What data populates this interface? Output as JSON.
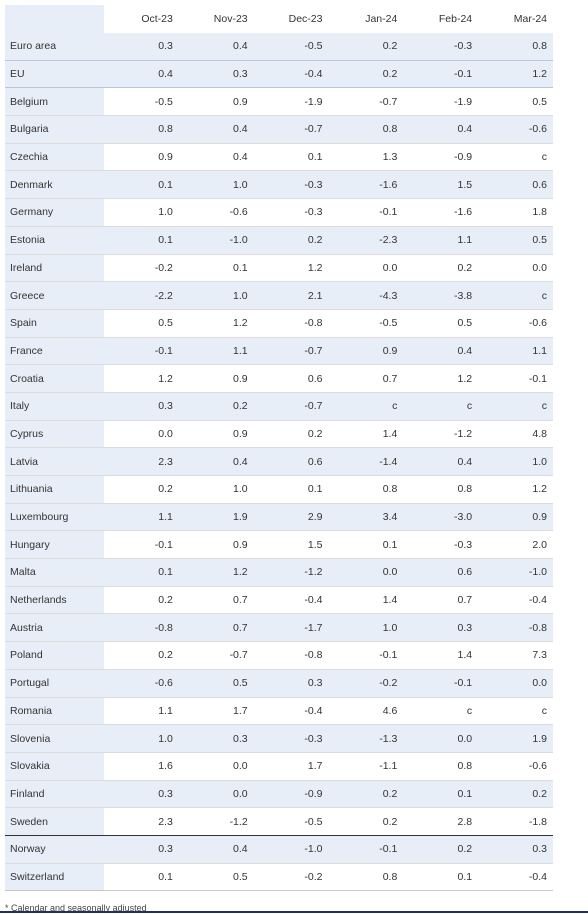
{
  "table": {
    "columns": [
      "Oct-23",
      "Nov-23",
      "Dec-23",
      "Jan-24",
      "Feb-24",
      "Mar-24"
    ],
    "aggregates": [
      {
        "name": "Euro area",
        "values": [
          "0.3",
          "0.4",
          "-0.5",
          "0.2",
          "-0.3",
          "0.8"
        ]
      },
      {
        "name": "EU",
        "values": [
          "0.4",
          "0.3",
          "-0.4",
          "0.2",
          "-0.1",
          "1.2"
        ]
      }
    ],
    "countries": [
      {
        "name": "Belgium",
        "values": [
          "-0.5",
          "0.9",
          "-1.9",
          "-0.7",
          "-1.9",
          "0.5"
        ]
      },
      {
        "name": "Bulgaria",
        "values": [
          "0.8",
          "0.4",
          "-0.7",
          "0.8",
          "0.4",
          "-0.6"
        ]
      },
      {
        "name": "Czechia",
        "values": [
          "0.9",
          "0.4",
          "0.1",
          "1.3",
          "-0.9",
          "c"
        ]
      },
      {
        "name": "Denmark",
        "values": [
          "0.1",
          "1.0",
          "-0.3",
          "-1.6",
          "1.5",
          "0.6"
        ]
      },
      {
        "name": "Germany",
        "values": [
          "1.0",
          "-0.6",
          "-0.3",
          "-0.1",
          "-1.6",
          "1.8"
        ]
      },
      {
        "name": "Estonia",
        "values": [
          "0.1",
          "-1.0",
          "0.2",
          "-2.3",
          "1.1",
          "0.5"
        ]
      },
      {
        "name": "Ireland",
        "values": [
          "-0.2",
          "0.1",
          "1.2",
          "0.0",
          "0.2",
          "0.0"
        ]
      },
      {
        "name": "Greece",
        "values": [
          "-2.2",
          "1.0",
          "2.1",
          "-4.3",
          "-3.8",
          "c"
        ]
      },
      {
        "name": "Spain",
        "values": [
          "0.5",
          "1.2",
          "-0.8",
          "-0.5",
          "0.5",
          "-0.6"
        ]
      },
      {
        "name": "France",
        "values": [
          "-0.1",
          "1.1",
          "-0.7",
          "0.9",
          "0.4",
          "1.1"
        ]
      },
      {
        "name": "Croatia",
        "values": [
          "1.2",
          "0.9",
          "0.6",
          "0.7",
          "1.2",
          "-0.1"
        ]
      },
      {
        "name": "Italy",
        "values": [
          "0.3",
          "0.2",
          "-0.7",
          "c",
          "c",
          "c"
        ]
      },
      {
        "name": "Cyprus",
        "values": [
          "0.0",
          "0.9",
          "0.2",
          "1.4",
          "-1.2",
          "4.8"
        ]
      },
      {
        "name": "Latvia",
        "values": [
          "2.3",
          "0.4",
          "0.6",
          "-1.4",
          "0.4",
          "1.0"
        ]
      },
      {
        "name": "Lithuania",
        "values": [
          "0.2",
          "1.0",
          "0.1",
          "0.8",
          "0.8",
          "1.2"
        ]
      },
      {
        "name": "Luxembourg",
        "values": [
          "1.1",
          "1.9",
          "2.9",
          "3.4",
          "-3.0",
          "0.9"
        ]
      },
      {
        "name": "Hungary",
        "values": [
          "-0.1",
          "0.9",
          "1.5",
          "0.1",
          "-0.3",
          "2.0"
        ]
      },
      {
        "name": "Malta",
        "values": [
          "0.1",
          "1.2",
          "-1.2",
          "0.0",
          "0.6",
          "-1.0"
        ]
      },
      {
        "name": "Netherlands",
        "values": [
          "0.2",
          "0.7",
          "-0.4",
          "1.4",
          "0.7",
          "-0.4"
        ]
      },
      {
        "name": "Austria",
        "values": [
          "-0.8",
          "0.7",
          "-1.7",
          "1.0",
          "0.3",
          "-0.8"
        ]
      },
      {
        "name": "Poland",
        "values": [
          "0.2",
          "-0.7",
          "-0.8",
          "-0.1",
          "1.4",
          "7.3"
        ]
      },
      {
        "name": "Portugal",
        "values": [
          "-0.6",
          "0.5",
          "0.3",
          "-0.2",
          "-0.1",
          "0.0"
        ]
      },
      {
        "name": "Romania",
        "values": [
          "1.1",
          "1.7",
          "-0.4",
          "4.6",
          "c",
          "c"
        ]
      },
      {
        "name": "Slovenia",
        "values": [
          "1.0",
          "0.3",
          "-0.3",
          "-1.3",
          "0.0",
          "1.9"
        ]
      },
      {
        "name": "Slovakia",
        "values": [
          "1.6",
          "0.0",
          "1.7",
          "-1.1",
          "0.8",
          "-0.6"
        ]
      },
      {
        "name": "Finland",
        "values": [
          "0.3",
          "0.0",
          "-0.9",
          "0.2",
          "0.1",
          "0.2"
        ]
      },
      {
        "name": "Sweden",
        "values": [
          "2.3",
          "-1.2",
          "-0.5",
          "0.2",
          "2.8",
          "-1.8"
        ]
      }
    ],
    "others": [
      {
        "name": "Norway",
        "values": [
          "0.3",
          "0.4",
          "-1.0",
          "-0.1",
          "0.2",
          "0.3"
        ]
      },
      {
        "name": "Switzerland",
        "values": [
          "0.1",
          "0.5",
          "-0.2",
          "0.8",
          "0.1",
          "-0.4"
        ]
      }
    ]
  },
  "footnote": "* Calendar and seasonally adjusted",
  "colors": {
    "shade": "#e8eef8",
    "header_rule": "#7f9cc8",
    "bottom_rule": "#1f2f5f"
  }
}
